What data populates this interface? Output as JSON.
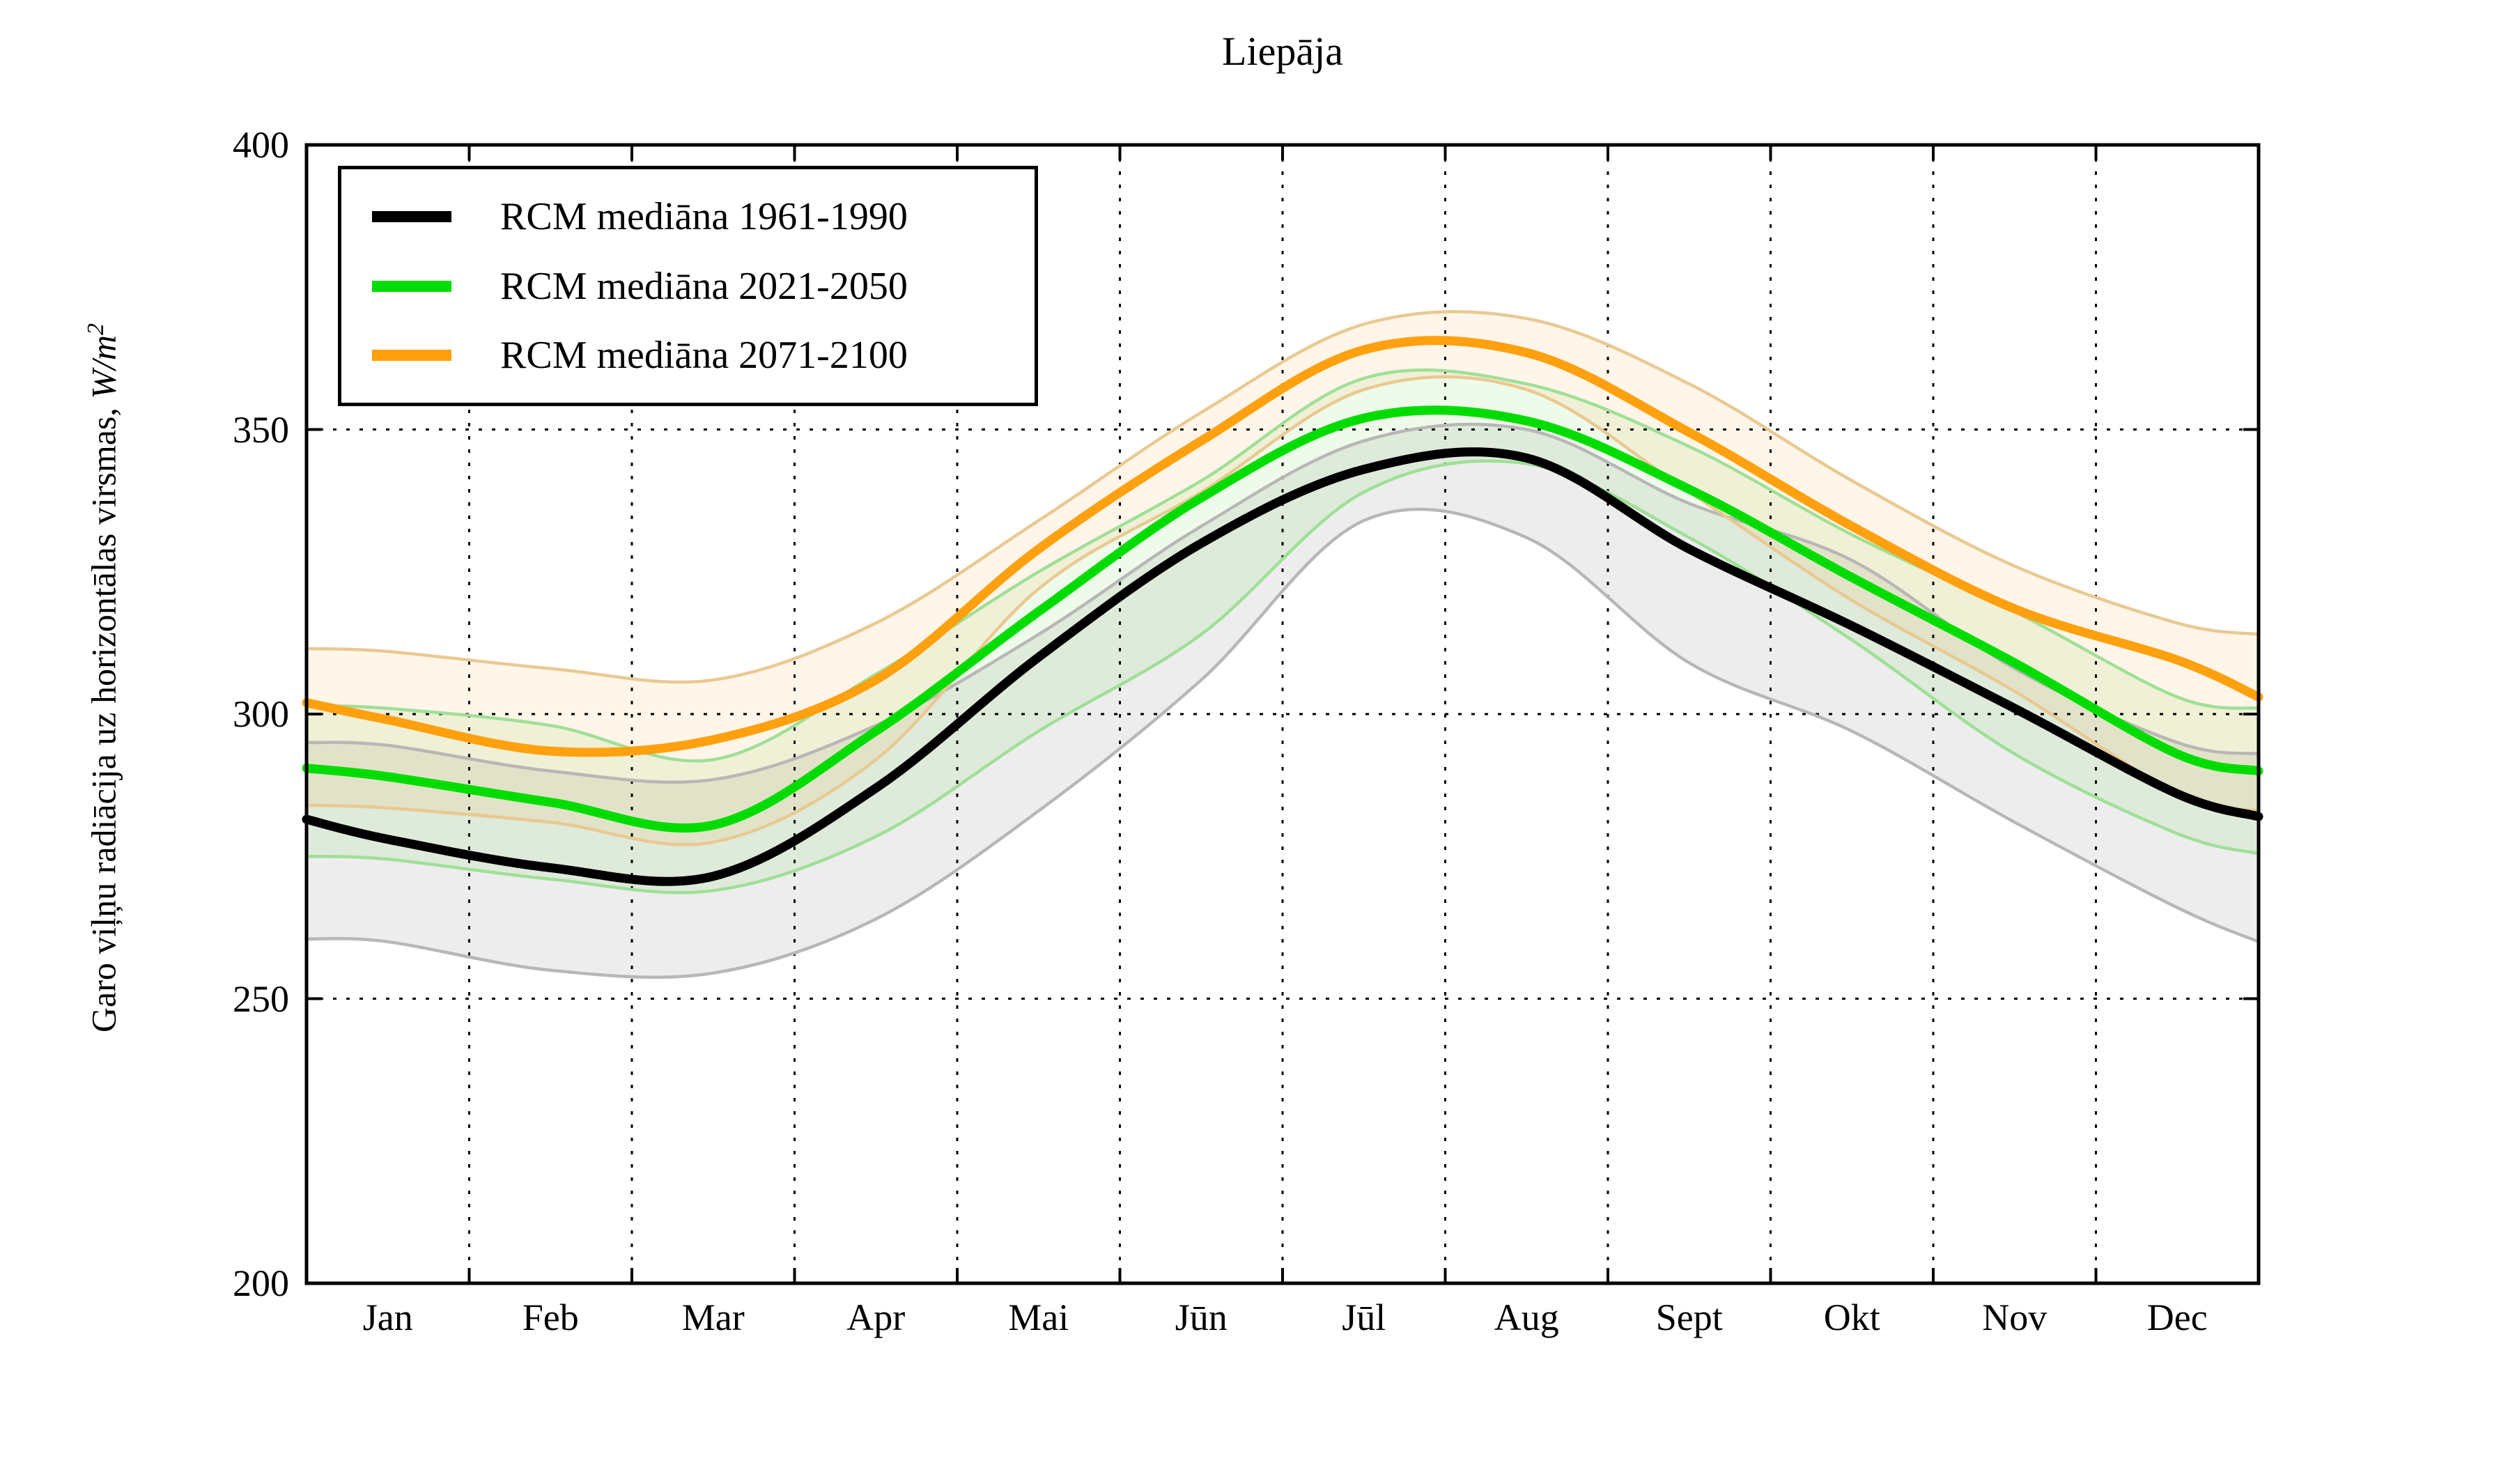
{
  "chart_data": {
    "type": "line",
    "title": "Liepāja",
    "ylabel_prefix": "Garo viļņu radiācija uz horizontālas virsmas, ",
    "ylabel_math": "W/m",
    "ylabel_exponent": "2",
    "categories": [
      "Jan",
      "Feb",
      "Mar",
      "Apr",
      "Mai",
      "Jūn",
      "Jūl",
      "Aug",
      "Sept",
      "Okt",
      "Nov",
      "Dec"
    ],
    "ytick_labels": [
      "400",
      "350",
      "300",
      "250",
      "200"
    ],
    "ytick_values": [
      400,
      350,
      300,
      250,
      200
    ],
    "ylim": [
      200,
      400
    ],
    "xlim_months": [
      0,
      12
    ],
    "grid": {
      "style": "dotted",
      "color": "#000000",
      "horizontal_at": [
        250,
        300,
        350
      ],
      "vertical_at_month_boundaries": true
    },
    "legend_position": "upper-left",
    "sample_x_months": [
      0,
      0.5,
      1.5,
      2.5,
      3.5,
      4.5,
      5.5,
      6.5,
      7.5,
      8.5,
      9.5,
      10.5,
      11.5,
      12
    ],
    "series": [
      {
        "name": "RCM mediāna 1961-1990",
        "line_color": "#000000",
        "band_fill": "rgba(140,140,140,0.16)",
        "band_edge": "#b7b7b7",
        "values": [
          281.5,
          278,
          273,
          271.5,
          287,
          310,
          330,
          343,
          345,
          329,
          315.5,
          301,
          286,
          282
        ],
        "band_upper": [
          295,
          294.5,
          290,
          288.5,
          298,
          314,
          333,
          348,
          350,
          337,
          327,
          308,
          295,
          293
        ],
        "band_lower": [
          260.5,
          260,
          255,
          254.5,
          264,
          283,
          306,
          334,
          331,
          309,
          297,
          281,
          266,
          260
        ]
      },
      {
        "name": "RCM mediāna 2021-2050",
        "line_color": "#00dc00",
        "band_fill": "rgba(120,215,90,0.13)",
        "band_edge": "#9fdf97",
        "values": [
          290.5,
          289,
          284.5,
          280.5,
          297,
          318,
          338,
          352,
          351.5,
          339.5,
          324,
          309,
          293,
          290
        ],
        "band_upper": [
          301.5,
          301,
          298,
          292,
          307,
          325,
          341,
          359,
          358,
          347,
          331.5,
          318,
          303,
          301
        ],
        "band_lower": [
          275,
          274.5,
          271,
          269,
          278.5,
          297,
          314,
          339,
          344,
          331,
          313,
          293,
          279,
          275.5
        ]
      },
      {
        "name": "RCM mediāna 2071-2100",
        "line_color": "#ffa00f",
        "band_fill": "rgba(255,170,70,0.12)",
        "band_edge": "#e9c992",
        "values": [
          302,
          299,
          293.5,
          295.5,
          306,
          329,
          348,
          364,
          363.5,
          349.5,
          333,
          318.5,
          309.5,
          303
        ],
        "band_upper": [
          311.5,
          311,
          308,
          306,
          316,
          334,
          353,
          368.5,
          369.5,
          358,
          341,
          326,
          316,
          314
        ],
        "band_lower": [
          284,
          283.5,
          281,
          277.5,
          292,
          322,
          339,
          357,
          357,
          339,
          320,
          304,
          286,
          283
        ]
      }
    ]
  }
}
